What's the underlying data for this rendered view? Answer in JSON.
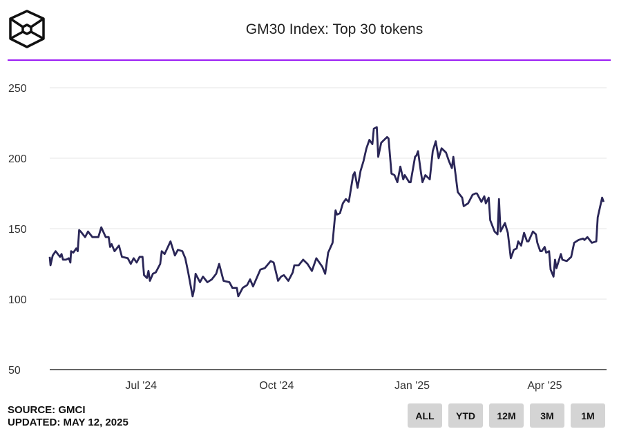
{
  "title": "GM30 Index: Top 30 tokens",
  "source": "SOURCE: GMCI",
  "updated": "UPDATED: MAY 12, 2025",
  "buttons": [
    "ALL",
    "YTD",
    "12M",
    "3M",
    "1M"
  ],
  "colors": {
    "line": "#2a2657",
    "accent": "#9b1cf5",
    "grid": "#e6e6e6",
    "button": "#d4d4d4"
  },
  "chart_data": {
    "type": "line",
    "title": "GM30 Index: Top 30 tokens",
    "x_unit": "days since 2024-07-01",
    "xlim": [
      -62,
      316
    ],
    "ylim": [
      50,
      250
    ],
    "yticks": [
      50,
      100,
      150,
      200,
      250
    ],
    "xticks": [
      {
        "value": 0,
        "label": "Jul '24"
      },
      {
        "value": 92,
        "label": "Oct '24"
      },
      {
        "value": 184,
        "label": "Jan '25"
      },
      {
        "value": 274,
        "label": "Apr '25"
      }
    ],
    "grid": true,
    "series": [
      {
        "name": "GM30",
        "points": [
          [
            -62,
            130
          ],
          [
            -61.5,
            124
          ],
          [
            -60,
            131
          ],
          [
            -58,
            134
          ],
          [
            -55,
            130
          ],
          [
            -54,
            132
          ],
          [
            -53,
            128
          ],
          [
            -51,
            128
          ],
          [
            -49,
            129
          ],
          [
            -48,
            126
          ],
          [
            -47.5,
            134
          ],
          [
            -46,
            133
          ],
          [
            -44,
            136
          ],
          [
            -43,
            134
          ],
          [
            -42,
            149
          ],
          [
            -41,
            148
          ],
          [
            -38,
            144
          ],
          [
            -36,
            148
          ],
          [
            -33,
            144
          ],
          [
            -29,
            144
          ],
          [
            -27,
            151
          ],
          [
            -24,
            144
          ],
          [
            -22,
            144
          ],
          [
            -21,
            137
          ],
          [
            -20,
            139
          ],
          [
            -18,
            134
          ],
          [
            -15,
            138
          ],
          [
            -13,
            130
          ],
          [
            -9,
            129
          ],
          [
            -7,
            125
          ],
          [
            -5,
            129
          ],
          [
            -3,
            126
          ],
          [
            -1,
            130
          ],
          [
            1,
            130
          ],
          [
            2,
            117
          ],
          [
            4,
            115
          ],
          [
            5,
            120
          ],
          [
            6,
            113
          ],
          [
            8,
            118
          ],
          [
            10,
            119
          ],
          [
            13,
            125
          ],
          [
            14,
            134
          ],
          [
            16,
            132
          ],
          [
            20,
            141
          ],
          [
            23,
            131
          ],
          [
            25,
            135
          ],
          [
            28,
            134
          ],
          [
            30,
            129
          ],
          [
            32,
            119
          ],
          [
            35,
            102
          ],
          [
            36,
            107
          ],
          [
            37,
            118
          ],
          [
            40,
            112
          ],
          [
            42,
            116
          ],
          [
            45,
            112
          ],
          [
            48,
            114
          ],
          [
            51,
            118
          ],
          [
            53,
            125
          ],
          [
            56,
            113
          ],
          [
            60,
            112
          ],
          [
            62,
            108
          ],
          [
            65,
            108
          ],
          [
            66,
            102
          ],
          [
            69,
            108
          ],
          [
            72,
            110
          ],
          [
            74,
            114
          ],
          [
            76,
            109
          ],
          [
            81,
            121
          ],
          [
            84,
            122
          ],
          [
            88,
            127
          ],
          [
            90,
            126
          ],
          [
            93,
            113
          ],
          [
            95,
            116
          ],
          [
            97,
            117
          ],
          [
            100,
            113
          ],
          [
            103,
            119
          ],
          [
            104,
            124
          ],
          [
            107,
            124
          ],
          [
            110,
            128
          ],
          [
            113,
            125
          ],
          [
            116,
            120
          ],
          [
            119,
            129
          ],
          [
            123,
            123
          ],
          [
            125,
            118
          ],
          [
            127,
            133
          ],
          [
            130,
            140
          ],
          [
            132,
            163
          ],
          [
            133,
            160
          ],
          [
            135,
            161
          ],
          [
            137,
            168
          ],
          [
            139,
            171
          ],
          [
            141,
            169
          ],
          [
            144,
            188
          ],
          [
            145,
            190
          ],
          [
            147,
            179
          ],
          [
            149,
            191
          ],
          [
            151,
            198
          ],
          [
            153,
            207
          ],
          [
            155,
            213
          ],
          [
            157,
            210
          ],
          [
            158,
            221
          ],
          [
            160,
            222
          ],
          [
            161,
            201
          ],
          [
            163,
            211
          ],
          [
            165,
            213
          ],
          [
            167,
            215
          ],
          [
            168,
            214
          ],
          [
            170,
            189
          ],
          [
            172,
            188
          ],
          [
            174,
            183
          ],
          [
            176,
            194
          ],
          [
            178,
            185
          ],
          [
            179,
            188
          ],
          [
            182,
            183
          ],
          [
            183,
            183
          ],
          [
            186,
            201
          ],
          [
            187,
            202
          ],
          [
            188,
            205
          ],
          [
            190,
            190
          ],
          [
            191,
            183
          ],
          [
            193,
            188
          ],
          [
            196,
            185
          ],
          [
            198,
            205
          ],
          [
            200,
            212
          ],
          [
            202,
            200
          ],
          [
            204,
            207
          ],
          [
            207,
            204
          ],
          [
            209,
            198
          ],
          [
            211,
            193
          ],
          [
            212,
            201
          ],
          [
            215,
            176
          ],
          [
            218,
            172
          ],
          [
            219,
            166
          ],
          [
            222,
            168
          ],
          [
            225,
            174
          ],
          [
            227,
            175
          ],
          [
            228,
            175
          ],
          [
            231,
            169
          ],
          [
            233,
            173
          ],
          [
            234,
            168
          ],
          [
            236,
            172
          ],
          [
            237,
            156
          ],
          [
            240,
            148
          ],
          [
            242,
            146
          ],
          [
            243,
            171
          ],
          [
            244,
            148
          ],
          [
            247,
            154
          ],
          [
            249,
            147
          ],
          [
            251,
            129
          ],
          [
            253,
            135
          ],
          [
            255,
            136
          ],
          [
            256,
            141
          ],
          [
            258,
            138
          ],
          [
            260,
            147
          ],
          [
            262,
            141
          ],
          [
            263,
            141
          ],
          [
            266,
            148
          ],
          [
            268,
            146
          ],
          [
            269,
            140
          ],
          [
            271,
            134
          ],
          [
            272,
            134
          ],
          [
            274,
            137
          ],
          [
            275,
            133
          ],
          [
            277,
            134
          ],
          [
            278,
            121
          ],
          [
            280,
            116
          ],
          [
            281,
            128
          ],
          [
            282,
            122
          ],
          [
            285,
            132
          ],
          [
            286,
            128
          ],
          [
            289,
            127
          ],
          [
            291,
            129
          ],
          [
            292,
            130
          ],
          [
            294,
            140
          ],
          [
            297,
            142
          ],
          [
            300,
            143
          ],
          [
            301,
            142
          ],
          [
            303,
            144
          ],
          [
            306,
            140
          ],
          [
            309,
            141
          ],
          [
            310,
            158
          ],
          [
            313,
            172
          ],
          [
            314,
            169
          ]
        ]
      }
    ]
  }
}
